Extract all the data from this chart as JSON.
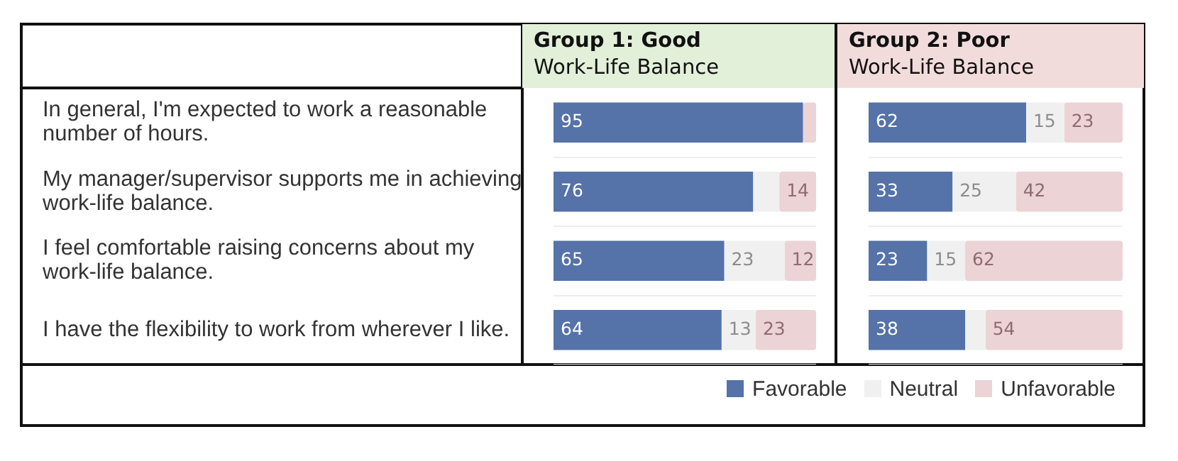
{
  "chart_data": [
    {
      "type": "bar",
      "orientation": "horizontal",
      "stacked": true,
      "title": "Group 1: Good",
      "subtitle": "Work-Life Balance",
      "categories": [
        "In general, I'm expected to work a reasonable number of hours.",
        "My manager/supervisor supports me in achieving work-life balance.",
        "I feel comfortable raising concerns about my work-life balance.",
        "I have the flexibility to work from wherever I like."
      ],
      "xlim": [
        0,
        100
      ],
      "tick_labels": "y",
      "grid": "y",
      "legend": "bottom right",
      "series": [
        {
          "name": "Favorable",
          "color": "#5572a9",
          "values": [
            95,
            76,
            65,
            64
          ],
          "value_labels": [
            "95",
            "76",
            "65",
            "64"
          ]
        },
        {
          "name": "Neutral",
          "color": "#f0f0f0",
          "values": [
            0,
            10,
            23,
            13
          ],
          "value_labels": [
            null,
            null,
            "23",
            "13"
          ]
        },
        {
          "name": "Unfavorable",
          "color": "#ebd3d6",
          "values": [
            5,
            14,
            12,
            23
          ],
          "value_labels": [
            null,
            "14",
            "12",
            "23"
          ]
        }
      ]
    },
    {
      "type": "bar",
      "orientation": "horizontal",
      "stacked": true,
      "title": "Group 2: Poor",
      "subtitle": "Work-Life Balance",
      "categories": [
        null,
        null,
        null,
        null
      ],
      "xlim": [
        0,
        100
      ],
      "tick_labels": false,
      "grid": "y",
      "series": [
        {
          "color": "#5572a9",
          "values": [
            62,
            33,
            23,
            38
          ],
          "value_labels": [
            "62",
            "33",
            "23",
            "38"
          ]
        },
        {
          "color": "#f0f0f0",
          "values": [
            15,
            25,
            15,
            8
          ],
          "value_labels": [
            "15",
            "25",
            "15",
            null
          ]
        },
        {
          "color": "#ebd3d6",
          "values": [
            23,
            42,
            62,
            54
          ],
          "value_labels": [
            "23",
            "42",
            "62",
            "54"
          ]
        }
      ]
    }
  ]
}
